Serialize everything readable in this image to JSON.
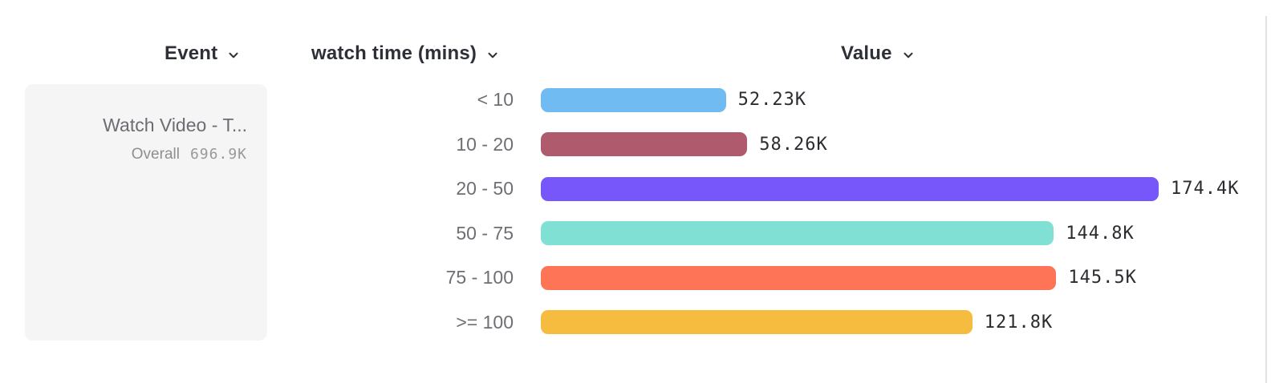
{
  "header": {
    "event_label": "Event",
    "dimension_label": "watch time (mins)",
    "value_label": "Value"
  },
  "event_card": {
    "title": "Watch Video - T...",
    "overall_label": "Overall",
    "overall_value": "696.9K"
  },
  "chart_data": {
    "type": "bar",
    "orientation": "horizontal",
    "title": "",
    "xlabel": "Value",
    "ylabel": "watch time (mins)",
    "unit": "thousands",
    "categories": [
      "< 10",
      "10 - 20",
      "20 - 50",
      "50 - 75",
      "75 - 100",
      ">= 100"
    ],
    "values": [
      52.23,
      58.26,
      174.4,
      144.8,
      145.5,
      121.8
    ],
    "value_labels": [
      "52.23K",
      "58.26K",
      "174.4K",
      "144.8K",
      "145.5K",
      "121.8K"
    ],
    "bar_colors": [
      "#6FBBF2",
      "#B05A6E",
      "#7857FA",
      "#7FE0D3",
      "#FE7457",
      "#F5BC40"
    ],
    "max_value": 174.4,
    "overall_total": "696.9K",
    "grid": false,
    "legend": false
  },
  "colors": {
    "header_text": "#2E3038",
    "bucket_label_text": "#6E6E74",
    "value_label_text": "#2C2C30",
    "card_background": "#F5F5F6",
    "card_title_text": "#6C6C72",
    "divider": "#E2E2E6"
  },
  "icons": {
    "chevron_down": "chevron-down"
  }
}
